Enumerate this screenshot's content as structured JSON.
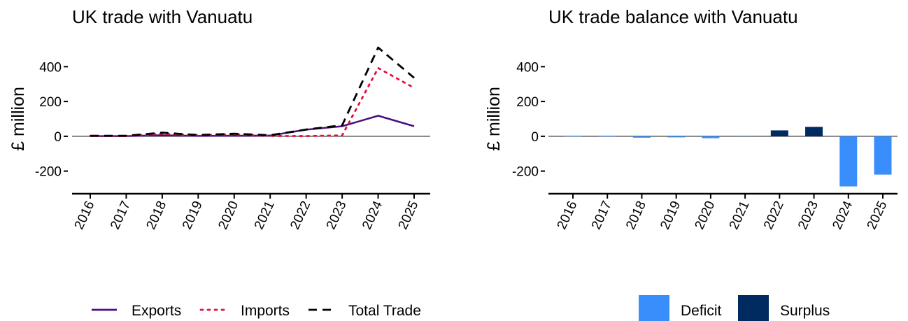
{
  "chart_data": [
    {
      "type": "line",
      "title": "UK trade with Vanuatu",
      "ylabel": "£ million",
      "xlabel": "",
      "categories": [
        "2016",
        "2017",
        "2018",
        "2019",
        "2020",
        "2021",
        "2022",
        "2023",
        "2024",
        "2025"
      ],
      "ylim": [
        -330,
        530
      ],
      "yticks": [
        -200,
        0,
        200,
        400
      ],
      "ytick_labels": [
        "-200",
        "0",
        "200",
        "400"
      ],
      "grid": false,
      "legend_position": "bottom",
      "series": [
        {
          "name": "Exports",
          "color": "#4b0f7f",
          "dash": "solid",
          "values": [
            1,
            1,
            6,
            2,
            3,
            4,
            38,
            58,
            118,
            58
          ]
        },
        {
          "name": "Imports",
          "color": "#e4103c",
          "dash": "dotted",
          "values": [
            2,
            2,
            15,
            5,
            12,
            2,
            1,
            5,
            392,
            278
          ]
        },
        {
          "name": "Total Trade",
          "color": "#000000",
          "dash": "dashed",
          "values": [
            3,
            3,
            21,
            7,
            15,
            6,
            39,
            63,
            510,
            336
          ]
        }
      ]
    },
    {
      "type": "bar",
      "title": "UK trade balance with Vanuatu",
      "ylabel": "£ million",
      "xlabel": "",
      "categories": [
        "2016",
        "2017",
        "2018",
        "2019",
        "2020",
        "2021",
        "2022",
        "2023",
        "2024",
        "2025"
      ],
      "values": [
        -1,
        -3,
        -8,
        -6,
        -11,
        1,
        34,
        54,
        -288,
        -220
      ],
      "ylim": [
        -330,
        530
      ],
      "yticks": [
        -200,
        0,
        200,
        400
      ],
      "ytick_labels": [
        "-200",
        "0",
        "200",
        "400"
      ],
      "grid": false,
      "legend_position": "bottom",
      "legend": [
        {
          "name": "Deficit",
          "color": "#3a8efc"
        },
        {
          "name": "Surplus",
          "color": "#002b61"
        }
      ]
    }
  ]
}
